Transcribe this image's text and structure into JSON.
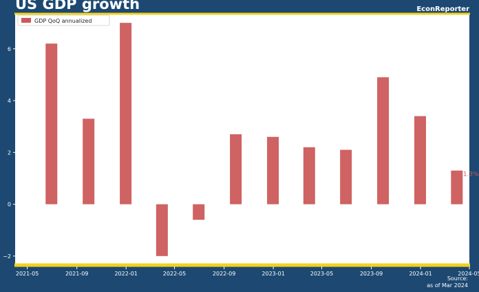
{
  "header": {
    "title": "US GDP growth",
    "brand": "EconReporter"
  },
  "footer": {
    "source_line1": "Source:",
    "source_line2": "as of Mar 2024"
  },
  "colors": {
    "background": "#1c4872",
    "accent": "#f2d21c",
    "bar": "#cc5a5a",
    "plot_bg": "#ffffff"
  },
  "chart_data": {
    "type": "bar",
    "title": "US GDP growth",
    "legend": {
      "position": "top-left",
      "entries": [
        "GDP QoQ annualized"
      ]
    },
    "series": [
      {
        "name": "GDP QoQ annualized",
        "x": [
          "2021-06-30",
          "2021-09-30",
          "2021-12-31",
          "2022-03-31",
          "2022-06-30",
          "2022-09-30",
          "2022-12-31",
          "2023-03-31",
          "2023-06-30",
          "2023-09-30",
          "2023-12-31",
          "2024-03-31"
        ],
        "values": [
          6.2,
          3.3,
          7.0,
          -2.0,
          -0.6,
          2.7,
          2.6,
          2.2,
          2.1,
          4.9,
          3.4,
          1.3
        ]
      }
    ],
    "annotation": {
      "x": "2024-03-31",
      "text": "1.3%"
    },
    "xlim": [
      "2021-04-01",
      "2024-05-01"
    ],
    "ylim": [
      -2.35,
      7.35
    ],
    "xticks": [
      "2021-05",
      "2021-09",
      "2022-01",
      "2022-05",
      "2022-09",
      "2023-01",
      "2023-05",
      "2023-09",
      "2024-01",
      "2024-05"
    ],
    "yticks": [
      -2,
      0,
      2,
      4,
      6
    ],
    "ytick_labels": [
      "−2",
      "0",
      "2",
      "4",
      "6"
    ],
    "grid": false
  }
}
